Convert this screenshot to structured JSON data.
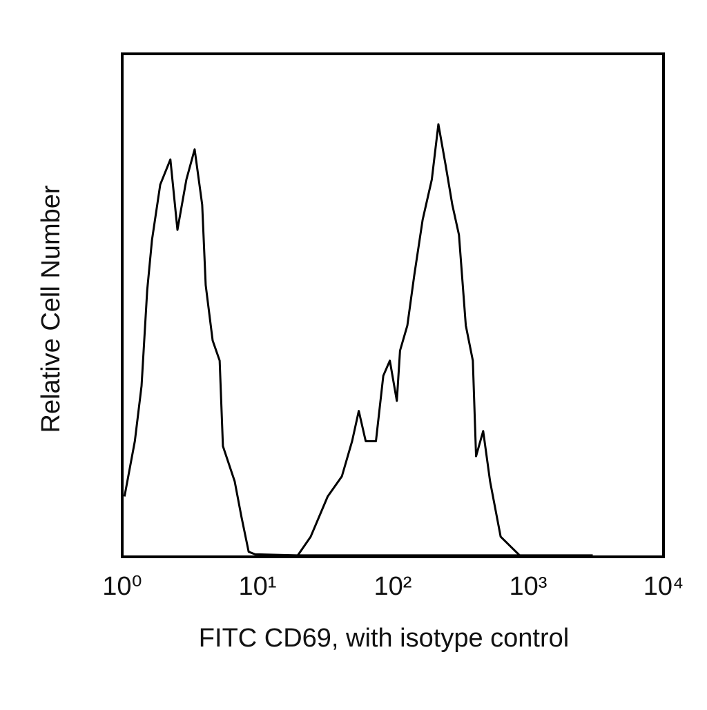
{
  "chart_data": {
    "type": "line",
    "x_label": "FITC CD69, with isotype control",
    "y_label": "Relative Cell Number",
    "log_x": true,
    "xlim": [
      1,
      10000
    ],
    "xticks": [
      {
        "value": 1,
        "label": "10⁰"
      },
      {
        "value": 10,
        "label": "10¹"
      },
      {
        "value": 100,
        "label": "10²"
      },
      {
        "value": 1000,
        "label": "10³"
      },
      {
        "value": 10000,
        "label": "10⁴"
      }
    ],
    "ylim": [
      0,
      100
    ],
    "grid": false,
    "series": [
      {
        "color": "#000000",
        "x": [
          1.04,
          1.24,
          1.39,
          1.53,
          1.66,
          1.91,
          2.27,
          2.56,
          2.98,
          3.43,
          3.9,
          4.14,
          4.66,
          5.25,
          5.55,
          6.78,
          7.6,
          8.6,
          9.6,
          19.5,
          100,
          1000,
          3000
        ],
        "values": [
          12,
          23,
          34,
          53,
          63,
          74,
          79,
          65,
          75,
          81,
          70,
          54,
          43,
          39,
          22,
          15,
          8,
          1,
          0.5,
          0.3,
          0.3,
          0.3,
          0.3
        ]
      },
      {
        "color": "#000000",
        "x": [
          19.5,
          24.7,
          33,
          42,
          50,
          56,
          63,
          75,
          85,
          95,
          107,
          113,
          128,
          144,
          166,
          194,
          217,
          245,
          275,
          308,
          346,
          390,
          412,
          465,
          523,
          626,
          745,
          887
        ],
        "values": [
          0,
          4,
          12,
          16,
          23,
          29,
          23,
          23,
          36,
          39,
          31,
          41,
          46,
          56,
          67,
          75,
          86,
          78,
          70,
          64,
          46,
          39,
          20,
          25,
          15,
          4,
          2,
          0
        ]
      }
    ]
  }
}
